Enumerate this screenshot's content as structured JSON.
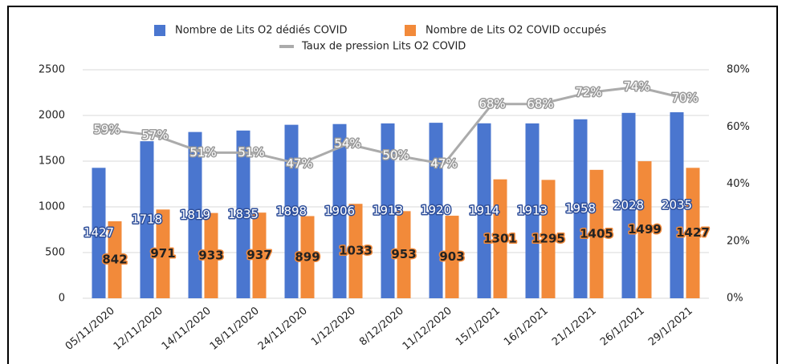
{
  "chart_data": {
    "type": "bar_line",
    "categories": [
      "05/11/2020",
      "12/11/2020",
      "14/11/2020",
      "18/11/2020",
      "24/11/2020",
      "1/12/2020",
      "8/12/2020",
      "11/12/2020",
      "15/1/2021",
      "16/1/2021",
      "21/1/2021",
      "26/1/2021",
      "29/1/2021"
    ],
    "series": [
      {
        "name": "Nombre de Lits O2 dédiés COVID",
        "color": "#4a76cf",
        "type": "bar",
        "values": [
          1427,
          1718,
          1819,
          1835,
          1898,
          1906,
          1913,
          1920,
          1914,
          1913,
          1958,
          2028,
          2035
        ]
      },
      {
        "name": "Nombre de Lits O2 COVID occupés",
        "color": "#f28a3a",
        "type": "bar",
        "values": [
          842,
          971,
          933,
          937,
          899,
          1033,
          953,
          903,
          1301,
          1295,
          1405,
          1499,
          1427
        ]
      },
      {
        "name": "Taux de pression Lits O2 COVID",
        "color": "#ababab",
        "type": "line",
        "axis": "y2",
        "values": [
          59,
          57,
          51,
          51,
          47,
          54,
          50,
          47,
          68,
          68,
          72,
          74,
          70
        ],
        "value_labels": [
          "59%",
          "57%",
          "51%",
          "51%",
          "47%",
          "54%",
          "50%",
          "47%",
          "68%",
          "68%",
          "72%",
          "74%",
          "70%"
        ]
      }
    ],
    "ylim": [
      0,
      2500
    ],
    "yticks": [
      0,
      500,
      1000,
      1500,
      2000,
      2500
    ],
    "y2lim": [
      0,
      80
    ],
    "y2ticks": [
      {
        "value": 0,
        "label": "0%"
      },
      {
        "value": 20,
        "label": "20%"
      },
      {
        "value": 40,
        "label": "40%"
      },
      {
        "value": 60,
        "label": "60%"
      },
      {
        "value": 80,
        "label": "80%"
      }
    ],
    "grid": true,
    "legend": "top"
  }
}
